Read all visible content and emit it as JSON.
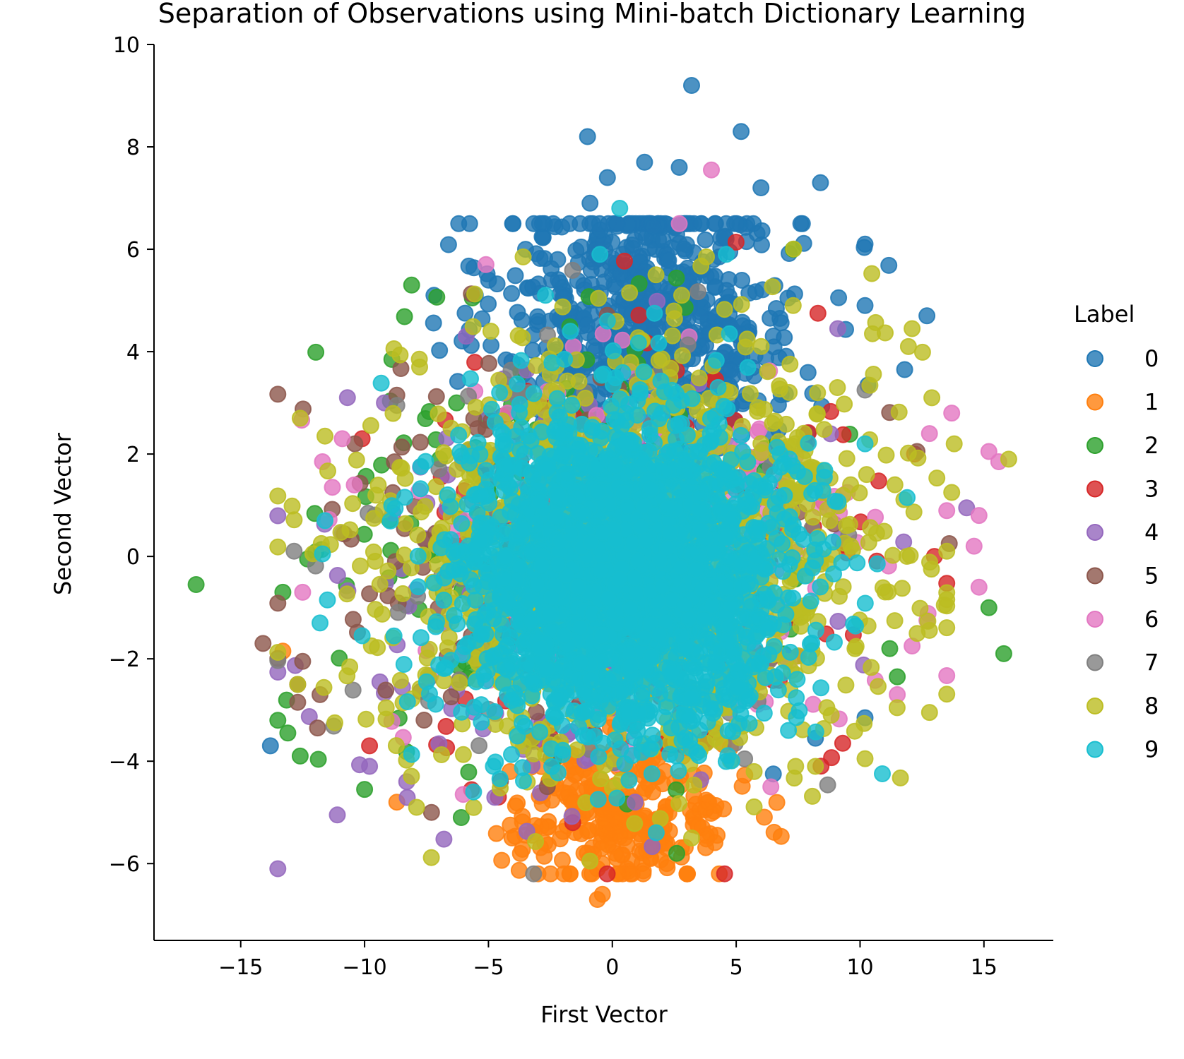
{
  "chart_data": {
    "type": "scatter",
    "title": "Separation of Observations using Mini-batch Dictionary Learning",
    "xlabel": "First Vector",
    "ylabel": "Second Vector",
    "xlim": [
      -18.5,
      17.8
    ],
    "ylim": [
      -7.5,
      10
    ],
    "xticks": [
      -15,
      -10,
      -5,
      0,
      5,
      10,
      15
    ],
    "xtick_labels": [
      "−15",
      "−10",
      "−5",
      "0",
      "5",
      "10",
      "15"
    ],
    "yticks": [
      -6,
      -4,
      -2,
      0,
      2,
      4,
      6,
      8,
      10
    ],
    "ytick_labels": [
      "−6",
      "−4",
      "−2",
      "0",
      "2",
      "4",
      "6",
      "8",
      "10"
    ],
    "grid": false,
    "legend": {
      "title": "Label",
      "placement": "right"
    },
    "series": [
      {
        "name": "0",
        "color": "#1f77b4",
        "center": [
          1.5,
          4.6
        ],
        "spread": [
          3.0,
          1.4
        ],
        "count": 700,
        "points": [
          [
            3.2,
            9.2
          ],
          [
            5.2,
            8.3
          ],
          [
            -1.0,
            8.2
          ],
          [
            1.3,
            7.7
          ],
          [
            2.7,
            7.6
          ],
          [
            -0.2,
            7.4
          ],
          [
            8.4,
            7.3
          ],
          [
            6.0,
            7.2
          ],
          [
            -0.9,
            6.9
          ],
          [
            10.2,
            6.1
          ],
          [
            -3.5,
            6.0
          ],
          [
            -13.8,
            -3.7
          ],
          [
            10.2,
            -3.15
          ],
          [
            8.2,
            -3.55
          ],
          [
            6.5,
            -4.25
          ],
          [
            12.7,
            4.7
          ],
          [
            10.2,
            4.9
          ],
          [
            11.8,
            3.65
          ],
          [
            -7.2,
            5.1
          ]
        ]
      },
      {
        "name": "1",
        "color": "#ff7f0e",
        "center": [
          0.4,
          -5.0
        ],
        "spread": [
          2.2,
          0.7
        ],
        "count": 300,
        "points": [
          [
            -0.6,
            -6.7
          ],
          [
            -0.4,
            -6.6
          ],
          [
            -13.3,
            -1.85
          ],
          [
            -8.7,
            -4.8
          ],
          [
            3.8,
            -5.45
          ],
          [
            2.2,
            -6.0
          ],
          [
            0.8,
            -6.2
          ]
        ]
      },
      {
        "name": "2",
        "color": "#2ca02c",
        "center": [
          -2.0,
          0.6
        ],
        "spread": [
          4.5,
          2.0
        ],
        "count": 200,
        "points": [
          [
            -16.8,
            -0.55
          ],
          [
            -13.5,
            -3.2
          ],
          [
            -13.1,
            -3.45
          ],
          [
            -12.6,
            -3.9
          ],
          [
            -10.0,
            -4.55
          ],
          [
            -6.1,
            -5.1
          ],
          [
            15.8,
            -1.9
          ],
          [
            15.2,
            -1.0
          ],
          [
            -8.1,
            5.3
          ],
          [
            7.3,
            6.0
          ],
          [
            -8.9,
            3.85
          ],
          [
            11.5,
            -2.35
          ],
          [
            2.6,
            -5.8
          ],
          [
            -13.3,
            -0.7
          ],
          [
            -12.3,
            -0.05
          ],
          [
            11.2,
            -1.8
          ]
        ]
      },
      {
        "name": "3",
        "color": "#d62728",
        "center": [
          2.0,
          -0.5
        ],
        "spread": [
          4.5,
          2.0
        ],
        "count": 200,
        "points": [
          [
            9.3,
            -3.65
          ],
          [
            -9.8,
            -3.7
          ],
          [
            -10.1,
            2.3
          ],
          [
            8.3,
            4.75
          ],
          [
            12.2,
            2.0
          ],
          [
            13.0,
            0.0
          ],
          [
            -1.6,
            -5.2
          ],
          [
            -4.6,
            -4.7
          ]
        ]
      },
      {
        "name": "4",
        "color": "#9467bd",
        "center": [
          -2.0,
          -0.5
        ],
        "spread": [
          4.5,
          2.0
        ],
        "count": 200,
        "points": [
          [
            -11.1,
            -5.05
          ],
          [
            -9.8,
            -4.1
          ],
          [
            14.3,
            0.95
          ],
          [
            9.1,
            4.45
          ],
          [
            -9.2,
            3.0
          ],
          [
            -8.3,
            -4.4
          ],
          [
            -5.9,
            4.3
          ]
        ]
      },
      {
        "name": "5",
        "color": "#8c564b",
        "center": [
          -3.0,
          0.0
        ],
        "spread": [
          4.5,
          2.0
        ],
        "count": 180,
        "points": [
          [
            -14.1,
            -1.7
          ],
          [
            -12.7,
            -2.5
          ],
          [
            -12.5,
            -2.05
          ],
          [
            -12.7,
            -2.85
          ],
          [
            -11.8,
            -2.7
          ],
          [
            -11.9,
            -3.35
          ],
          [
            -7.3,
            -5.0
          ],
          [
            13.6,
            0.25
          ],
          [
            -8.7,
            3.15
          ],
          [
            12.3,
            2.05
          ]
        ]
      },
      {
        "name": "6",
        "color": "#e377c2",
        "center": [
          1.0,
          0.0
        ],
        "spread": [
          5.0,
          2.0
        ],
        "count": 220,
        "points": [
          [
            -11.7,
            1.85
          ],
          [
            -11.3,
            1.35
          ],
          [
            -12.5,
            -0.7
          ],
          [
            15.2,
            2.05
          ],
          [
            15.6,
            1.85
          ],
          [
            14.8,
            0.8
          ],
          [
            14.6,
            0.2
          ],
          [
            14.8,
            -0.6
          ],
          [
            13.7,
            2.8
          ],
          [
            12.8,
            2.4
          ],
          [
            12.7,
            -1.25
          ],
          [
            11.5,
            -2.7
          ],
          [
            12.1,
            -1.75
          ],
          [
            -5.1,
            5.7
          ],
          [
            4.0,
            7.55
          ],
          [
            2.7,
            6.5
          ],
          [
            6.4,
            -4.5
          ],
          [
            -10.9,
            2.3
          ]
        ]
      },
      {
        "name": "7",
        "color": "#7f7f7f",
        "center": [
          -1.0,
          0.0
        ],
        "spread": [
          4.5,
          2.0
        ],
        "count": 150,
        "points": [
          [
            -8.7,
            2.95
          ],
          [
            10.2,
            3.25
          ]
        ]
      },
      {
        "name": "8",
        "color": "#bcbd22",
        "center": [
          1.0,
          0.0
        ],
        "spread": [
          5.0,
          2.0
        ],
        "count": 1200,
        "points": [
          [
            -12.6,
            2.7
          ],
          [
            -11.6,
            2.35
          ],
          [
            16.0,
            1.9
          ],
          [
            13.4,
            -0.95
          ],
          [
            13.7,
            1.25
          ],
          [
            13.8,
            2.2
          ],
          [
            12.1,
            4.45
          ],
          [
            -11.2,
            -3.25
          ],
          [
            -12.7,
            -2.5
          ],
          [
            -7.9,
            -4.9
          ],
          [
            10.2,
            -3.95
          ],
          [
            8.2,
            -4.1
          ],
          [
            7.4,
            -4.1
          ],
          [
            3.2,
            -5.5
          ],
          [
            -0.9,
            -5.95
          ],
          [
            2.8,
            5.1
          ],
          [
            7.3,
            4.9
          ],
          [
            -4.9,
            4.4
          ],
          [
            10.5,
            4.35
          ],
          [
            -3.6,
            5.85
          ],
          [
            3.8,
            5.85
          ]
        ]
      },
      {
        "name": "9",
        "color": "#17becf",
        "center": [
          0.5,
          -0.3
        ],
        "spread": [
          3.3,
          1.5
        ],
        "count": 2200,
        "points": [
          [
            0.3,
            6.8
          ],
          [
            -0.5,
            5.9
          ],
          [
            4.6,
            5.9
          ],
          [
            -11.7,
            0.05
          ],
          [
            -11.6,
            0.7
          ],
          [
            -11.5,
            -0.85
          ],
          [
            -11.8,
            -1.3
          ],
          [
            -10.1,
            -1.55
          ],
          [
            -5.6,
            -4.6
          ],
          [
            -4.8,
            -4.1
          ],
          [
            -7.5,
            -2.45
          ],
          [
            0.5,
            -4.05
          ],
          [
            1.7,
            -3.65
          ],
          [
            11.9,
            1.15
          ],
          [
            10.2,
            2.2
          ],
          [
            -0.2,
            4.6
          ],
          [
            -2.7,
            5.1
          ],
          [
            1.7,
            4.75
          ]
        ]
      }
    ]
  }
}
